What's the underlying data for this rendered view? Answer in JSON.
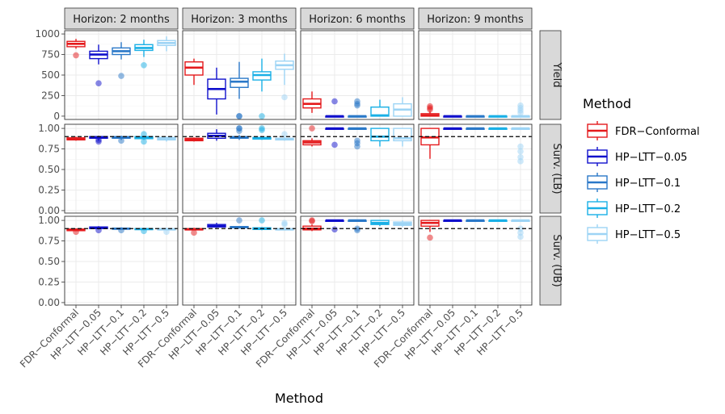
{
  "chart_data": {
    "type": "boxplot",
    "facet_columns": [
      "Horizon: 2 months",
      "Horizon: 3 months",
      "Horizon: 6 months",
      "Horizon: 9 months"
    ],
    "facet_rows": [
      {
        "label": "Yield",
        "ylim": [
          -40,
          1040
        ],
        "ticks": [
          0,
          250,
          500,
          750,
          1000
        ],
        "tick_labels": [
          "0",
          "250",
          "500",
          "750",
          "1000"
        ],
        "reference": null
      },
      {
        "label": "Surv. (LB)",
        "ylim": [
          -0.03,
          1.05
        ],
        "ticks": [
          0,
          0.25,
          0.5,
          0.75,
          1.0
        ],
        "tick_labels": [
          "0.00",
          "0.25",
          "0.50",
          "0.75",
          "1.00"
        ],
        "reference": 0.9
      },
      {
        "label": "Surv. (UB)",
        "ylim": [
          -0.03,
          1.05
        ],
        "ticks": [
          0,
          0.25,
          0.5,
          0.75,
          1.0
        ],
        "tick_labels": [
          "0.00",
          "0.25",
          "0.50",
          "0.75",
          "1.00"
        ],
        "reference": 0.9
      }
    ],
    "methods": [
      "FDR−Conformal",
      "HP−LTT−0.05",
      "HP−LTT−0.1",
      "HP−LTT−0.2",
      "HP−LTT−0.5"
    ],
    "colors": [
      "#e41a1c",
      "#1010cc",
      "#2a78c8",
      "#1ab0e6",
      "#9dd4f5"
    ],
    "xlabel": "Method",
    "legend_title": "Method",
    "legend_position": "right",
    "boxes": [
      [
        [
          {
            "min": 820,
            "q1": 845,
            "median": 880,
            "q3": 910,
            "max": 940,
            "outliers": [
              740
            ]
          },
          {
            "min": 630,
            "q1": 700,
            "median": 750,
            "q3": 790,
            "max": 870,
            "outliers": [
              400
            ]
          },
          {
            "min": 690,
            "q1": 750,
            "median": 790,
            "q3": 830,
            "max": 900,
            "outliers": [
              490
            ]
          },
          {
            "min": 720,
            "q1": 800,
            "median": 830,
            "q3": 870,
            "max": 930,
            "outliers": [
              620
            ]
          },
          {
            "min": 790,
            "q1": 860,
            "median": 890,
            "q3": 920,
            "max": 970,
            "outliers": []
          }
        ],
        [
          {
            "min": 380,
            "q1": 500,
            "median": 590,
            "q3": 660,
            "max": 700,
            "outliers": []
          },
          {
            "min": 20,
            "q1": 210,
            "median": 330,
            "q3": 450,
            "max": 590,
            "outliers": []
          },
          {
            "min": 210,
            "q1": 350,
            "median": 420,
            "q3": 460,
            "max": 660,
            "outliers": [
              0,
              0
            ]
          },
          {
            "min": 300,
            "q1": 440,
            "median": 500,
            "q3": 540,
            "max": 700,
            "outliers": [
              0
            ]
          },
          {
            "min": 380,
            "q1": 570,
            "median": 620,
            "q3": 670,
            "max": 760,
            "outliers": [
              230
            ]
          }
        ],
        [
          {
            "min": 40,
            "q1": 100,
            "median": 150,
            "q3": 210,
            "max": 300,
            "outliers": []
          },
          {
            "min": 0,
            "q1": 0,
            "median": 0,
            "q3": 0,
            "max": 0,
            "outliers": [
              180
            ]
          },
          {
            "min": 0,
            "q1": 0,
            "median": 0,
            "q3": 0,
            "max": 0,
            "outliers": [
              130,
              150,
              180
            ]
          },
          {
            "min": 0,
            "q1": 0,
            "median": 10,
            "q3": 110,
            "max": 200,
            "outliers": []
          },
          {
            "min": 0,
            "q1": 0,
            "median": 80,
            "q3": 150,
            "max": 230,
            "outliers": []
          }
        ],
        [
          {
            "min": 0,
            "q1": 0,
            "median": 10,
            "q3": 30,
            "max": 60,
            "outliers": [
              80,
              100,
              120
            ]
          },
          {
            "min": 0,
            "q1": 0,
            "median": 0,
            "q3": 0,
            "max": 0,
            "outliers": []
          },
          {
            "min": 0,
            "q1": 0,
            "median": 0,
            "q3": 0,
            "max": 0,
            "outliers": []
          },
          {
            "min": 0,
            "q1": 0,
            "median": 0,
            "q3": 0,
            "max": 0,
            "outliers": []
          },
          {
            "min": 0,
            "q1": 0,
            "median": 0,
            "q3": 0,
            "max": 0,
            "outliers": [
              40,
              70,
              100,
              130
            ]
          }
        ]
      ],
      [
        [
          {
            "min": 0.85,
            "q1": 0.86,
            "median": 0.875,
            "q3": 0.885,
            "max": 0.9,
            "outliers": []
          },
          {
            "min": 0.85,
            "q1": 0.88,
            "median": 0.895,
            "q3": 0.9,
            "max": 0.91,
            "outliers": [
              0.84,
              0.86
            ]
          },
          {
            "min": 0.86,
            "q1": 0.88,
            "median": 0.89,
            "q3": 0.9,
            "max": 0.91,
            "outliers": [
              0.85
            ]
          },
          {
            "min": 0.86,
            "q1": 0.875,
            "median": 0.89,
            "q3": 0.9,
            "max": 0.91,
            "outliers": [
              0.84,
              0.93
            ]
          },
          {
            "min": 0.84,
            "q1": 0.86,
            "median": 0.875,
            "q3": 0.89,
            "max": 0.9,
            "outliers": []
          }
        ],
        [
          {
            "min": 0.84,
            "q1": 0.85,
            "median": 0.865,
            "q3": 0.88,
            "max": 0.89,
            "outliers": []
          },
          {
            "min": 0.85,
            "q1": 0.88,
            "median": 0.91,
            "q3": 0.94,
            "max": 0.99,
            "outliers": []
          },
          {
            "min": 0.86,
            "q1": 0.88,
            "median": 0.89,
            "q3": 0.9,
            "max": 0.92,
            "outliers": [
              1.0,
              1.0,
              0.97
            ]
          },
          {
            "min": 0.86,
            "q1": 0.87,
            "median": 0.88,
            "q3": 0.89,
            "max": 0.9,
            "outliers": [
              1.0,
              0.98
            ]
          },
          {
            "min": 0.85,
            "q1": 0.86,
            "median": 0.87,
            "q3": 0.88,
            "max": 0.9,
            "outliers": [
              0.93
            ]
          }
        ],
        [
          {
            "min": 0.78,
            "q1": 0.8,
            "median": 0.83,
            "q3": 0.85,
            "max": 0.88,
            "outliers": [
              1.0
            ]
          },
          {
            "min": 1.0,
            "q1": 1.0,
            "median": 1.0,
            "q3": 1.0,
            "max": 1.0,
            "outliers": [
              0.8
            ]
          },
          {
            "min": 1.0,
            "q1": 1.0,
            "median": 1.0,
            "q3": 1.0,
            "max": 1.0,
            "outliers": [
              0.78,
              0.82,
              0.85
            ]
          },
          {
            "min": 0.78,
            "q1": 0.85,
            "median": 0.9,
            "q3": 1.0,
            "max": 1.0,
            "outliers": []
          },
          {
            "min": 0.78,
            "q1": 0.85,
            "median": 0.88,
            "q3": 1.0,
            "max": 1.0,
            "outliers": []
          }
        ],
        [
          {
            "min": 0.63,
            "q1": 0.8,
            "median": 0.89,
            "q3": 1.0,
            "max": 1.0,
            "outliers": []
          },
          {
            "min": 1.0,
            "q1": 1.0,
            "median": 1.0,
            "q3": 1.0,
            "max": 1.0,
            "outliers": []
          },
          {
            "min": 1.0,
            "q1": 1.0,
            "median": 1.0,
            "q3": 1.0,
            "max": 1.0,
            "outliers": []
          },
          {
            "min": 1.0,
            "q1": 1.0,
            "median": 1.0,
            "q3": 1.0,
            "max": 1.0,
            "outliers": []
          },
          {
            "min": 1.0,
            "q1": 1.0,
            "median": 1.0,
            "q3": 1.0,
            "max": 1.0,
            "outliers": [
              0.6,
              0.65,
              0.72,
              0.78
            ]
          }
        ]
      ],
      [
        [
          {
            "min": 0.87,
            "q1": 0.875,
            "median": 0.885,
            "q3": 0.895,
            "max": 0.9,
            "outliers": [
              0.86
            ]
          },
          {
            "min": 0.89,
            "q1": 0.9,
            "median": 0.91,
            "q3": 0.92,
            "max": 0.93,
            "outliers": [
              0.88
            ]
          },
          {
            "min": 0.89,
            "q1": 0.895,
            "median": 0.9,
            "q3": 0.905,
            "max": 0.91,
            "outliers": [
              0.88
            ]
          },
          {
            "min": 0.88,
            "q1": 0.89,
            "median": 0.895,
            "q3": 0.9,
            "max": 0.91,
            "outliers": [
              0.87
            ]
          },
          {
            "min": 0.88,
            "q1": 0.885,
            "median": 0.89,
            "q3": 0.9,
            "max": 0.91,
            "outliers": [
              0.86
            ]
          }
        ],
        [
          {
            "min": 0.88,
            "q1": 0.885,
            "median": 0.89,
            "q3": 0.9,
            "max": 0.91,
            "outliers": [
              0.85
            ]
          },
          {
            "min": 0.91,
            "q1": 0.92,
            "median": 0.93,
            "q3": 0.95,
            "max": 0.97,
            "outliers": []
          },
          {
            "min": 0.9,
            "q1": 0.91,
            "median": 0.92,
            "q3": 0.925,
            "max": 0.93,
            "outliers": [
              1.0
            ]
          },
          {
            "min": 0.88,
            "q1": 0.89,
            "median": 0.9,
            "q3": 0.91,
            "max": 0.92,
            "outliers": [
              1.0
            ]
          },
          {
            "min": 0.88,
            "q1": 0.885,
            "median": 0.89,
            "q3": 0.9,
            "max": 0.91,
            "outliers": [
              0.95,
              0.97
            ]
          }
        ],
        [
          {
            "min": 0.87,
            "q1": 0.885,
            "median": 0.9,
            "q3": 0.93,
            "max": 0.95,
            "outliers": [
              1.0,
              0.99
            ]
          },
          {
            "min": 1.0,
            "q1": 1.0,
            "median": 1.0,
            "q3": 1.0,
            "max": 1.0,
            "outliers": [
              0.89
            ]
          },
          {
            "min": 1.0,
            "q1": 1.0,
            "median": 1.0,
            "q3": 1.0,
            "max": 1.0,
            "outliers": [
              0.88,
              0.9
            ]
          },
          {
            "min": 0.93,
            "q1": 0.95,
            "median": 0.97,
            "q3": 1.0,
            "max": 1.0,
            "outliers": []
          },
          {
            "min": 0.92,
            "q1": 0.94,
            "median": 0.96,
            "q3": 0.98,
            "max": 1.0,
            "outliers": []
          }
        ],
        [
          {
            "min": 0.86,
            "q1": 0.93,
            "median": 0.97,
            "q3": 1.0,
            "max": 1.0,
            "outliers": [
              0.79
            ]
          },
          {
            "min": 1.0,
            "q1": 1.0,
            "median": 1.0,
            "q3": 1.0,
            "max": 1.0,
            "outliers": []
          },
          {
            "min": 1.0,
            "q1": 1.0,
            "median": 1.0,
            "q3": 1.0,
            "max": 1.0,
            "outliers": []
          },
          {
            "min": 1.0,
            "q1": 1.0,
            "median": 1.0,
            "q3": 1.0,
            "max": 1.0,
            "outliers": []
          },
          {
            "min": 1.0,
            "q1": 1.0,
            "median": 1.0,
            "q3": 1.0,
            "max": 1.0,
            "outliers": [
              0.8,
              0.85,
              0.9
            ]
          }
        ]
      ]
    ]
  }
}
